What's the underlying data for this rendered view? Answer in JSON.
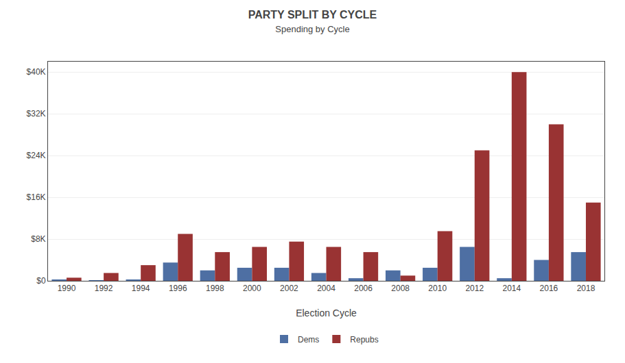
{
  "chart_data": {
    "type": "bar",
    "title": "PARTY SPLIT BY CYCLE",
    "subtitle": "Spending by Cycle",
    "xlabel": "Election Cycle",
    "categories": [
      "1990",
      "1992",
      "1994",
      "1996",
      "1998",
      "2000",
      "2002",
      "2004",
      "2006",
      "2008",
      "2010",
      "2012",
      "2014",
      "2016",
      "2018"
    ],
    "series": [
      {
        "name": "Dems",
        "color": "#4e6fa3",
        "values": [
          200,
          100,
          200,
          3500,
          2000,
          2500,
          2500,
          1500,
          500,
          2000,
          2500,
          6500,
          500,
          4000,
          5500
        ]
      },
      {
        "name": "Repubs",
        "color": "#993333",
        "values": [
          600,
          1500,
          3000,
          9000,
          5500,
          6500,
          7500,
          6500,
          5500,
          1000,
          9500,
          25000,
          40000,
          30000,
          15000
        ]
      }
    ],
    "ylim": [
      0,
      42000
    ],
    "yticks": [
      {
        "value": 0,
        "label": "$0"
      },
      {
        "value": 8000,
        "label": "$8K"
      },
      {
        "value": 16000,
        "label": "$16K"
      },
      {
        "value": 24000,
        "label": "$24K"
      },
      {
        "value": 32000,
        "label": "$32K"
      },
      {
        "value": 40000,
        "label": "$40K"
      }
    ],
    "grid": true,
    "legend": "bottom"
  }
}
